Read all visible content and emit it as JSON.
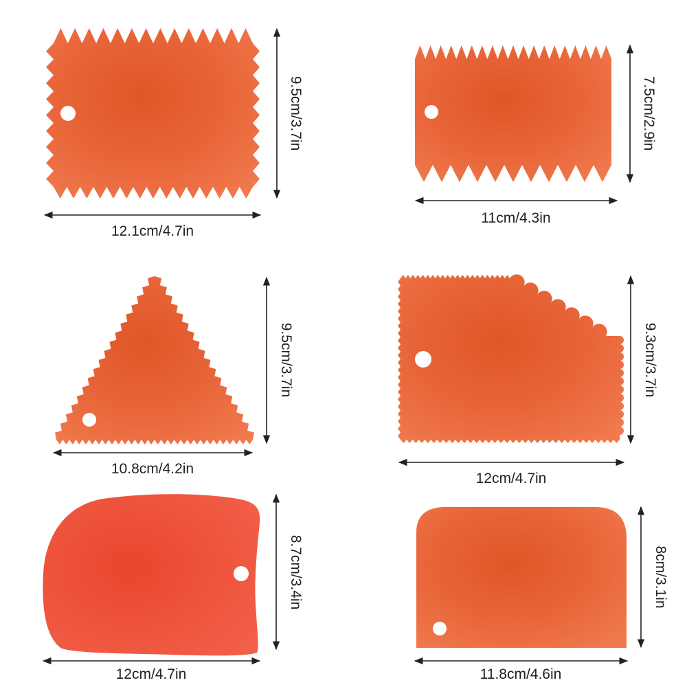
{
  "colors": {
    "scraper_main": "#e2572a",
    "scraper_light": "#ee7447",
    "scraper_edge": "#c9471d",
    "scraper_red": "#ef4f39",
    "background": "#ffffff",
    "text": "#222222"
  },
  "scrapers": [
    {
      "shape": "rectangle-serrated-four-sides",
      "width_label": "12.1cm/4.7in",
      "height_label": "9.5cm/3.7in"
    },
    {
      "shape": "rectangle-serrated-top-bottom",
      "width_label": "11cm/4.3in",
      "height_label": "7.5cm/2.9in"
    },
    {
      "shape": "triangle-serrated",
      "width_label": "10.8cm/4.2in",
      "height_label": "9.5cm/3.7in"
    },
    {
      "shape": "irregular-scalloped",
      "width_label": "12cm/4.7in",
      "height_label": "9.3cm/3.7in"
    },
    {
      "shape": "bowl-curved",
      "width_label": "12cm/4.7in",
      "height_label": "8.7cm/3.4in"
    },
    {
      "shape": "bench-rounded-rectangle",
      "width_label": "11.8cm/4.6in",
      "height_label": "8cm/3.1in"
    }
  ]
}
